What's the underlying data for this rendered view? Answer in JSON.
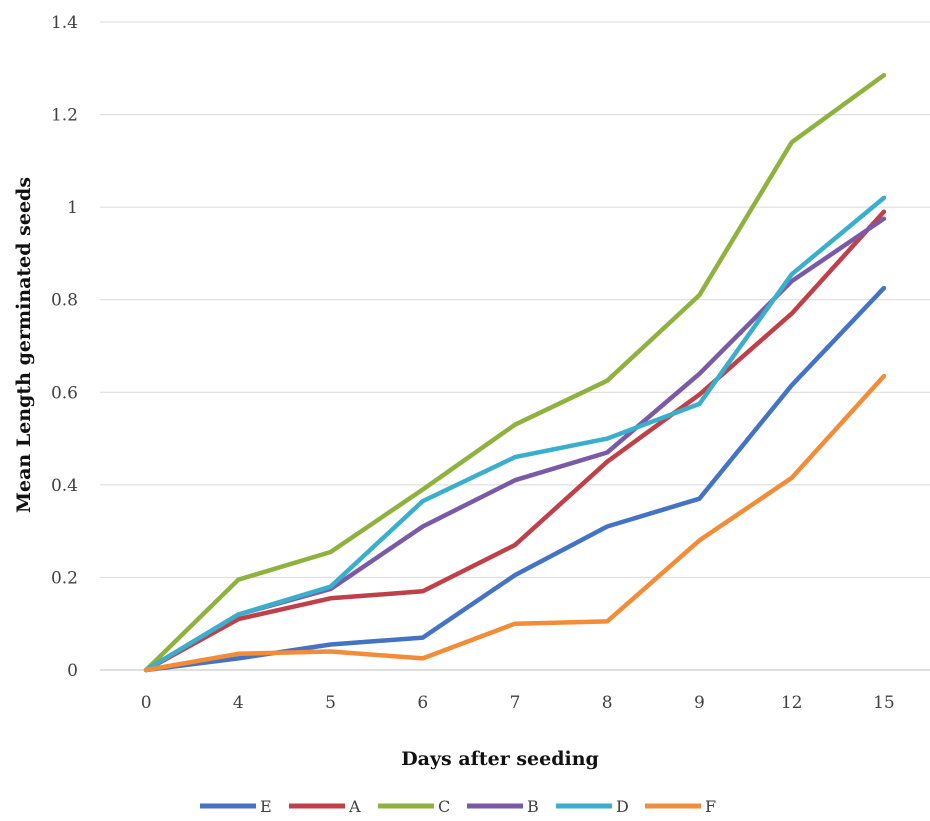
{
  "chart_data": {
    "type": "line",
    "categories": [
      "0",
      "4",
      "5",
      "6",
      "7",
      "8",
      "9",
      "12",
      "15"
    ],
    "xlabel": "Days after seeding",
    "ylabel": "Mean Length germinated seeds",
    "ylim": [
      0,
      1.4
    ],
    "yticks": [
      "0",
      "0.2",
      "0.4",
      "0.6",
      "0.8",
      "1",
      "1.2",
      "1.4"
    ],
    "grid": "horizontal",
    "legend": "bottom",
    "series": [
      {
        "name": "E",
        "color": "#4472C4",
        "values": [
          0,
          0.025,
          0.055,
          0.07,
          0.205,
          0.31,
          0.37,
          0.615,
          0.825
        ]
      },
      {
        "name": "A",
        "color": "#C0404A",
        "values": [
          0,
          0.11,
          0.155,
          0.17,
          0.27,
          0.45,
          0.595,
          0.77,
          0.99
        ]
      },
      {
        "name": "C",
        "color": "#8FB23F",
        "values": [
          0,
          0.195,
          0.255,
          0.39,
          0.53,
          0.625,
          0.81,
          1.14,
          1.285
        ]
      },
      {
        "name": "B",
        "color": "#7A5AA6",
        "values": [
          0,
          0.12,
          0.175,
          0.31,
          0.41,
          0.47,
          0.64,
          0.84,
          0.975
        ]
      },
      {
        "name": "D",
        "color": "#3AAFCC",
        "values": [
          0,
          0.12,
          0.18,
          0.365,
          0.46,
          0.5,
          0.575,
          0.855,
          1.02
        ]
      },
      {
        "name": "F",
        "color": "#F28C38",
        "values": [
          0,
          0.035,
          0.04,
          0.025,
          0.1,
          0.105,
          0.28,
          0.415,
          0.635
        ]
      }
    ]
  }
}
